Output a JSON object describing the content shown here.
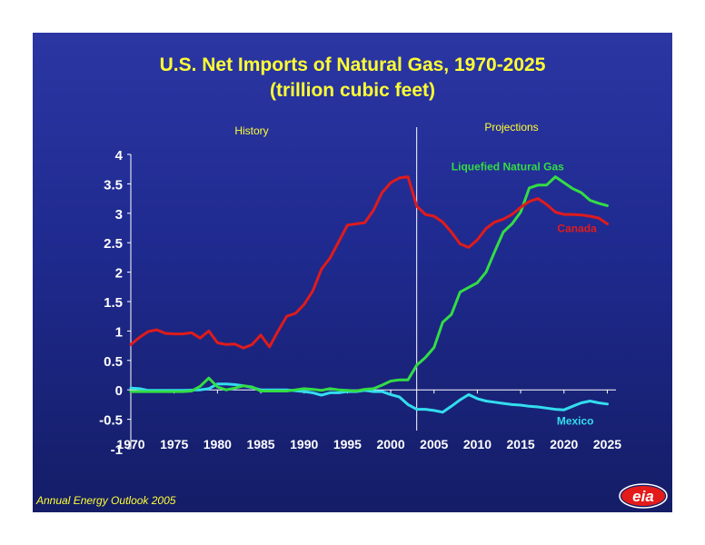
{
  "slide": {
    "footer": "Annual Energy Outlook 2005",
    "logo_text": "eia"
  },
  "colors": {
    "background_top": "#2b36a3",
    "background_bottom": "#141d66",
    "title": "#ffff33",
    "canada": "#e01b1b",
    "lng": "#33dd44",
    "mexico": "#33ddee",
    "axis": "#ffffff",
    "history_divider": "#ffffff"
  },
  "chart_data": {
    "type": "line",
    "title": "U.S. Net Imports of Natural Gas, 1970-2025",
    "subtitle": "(trillion cubic feet)",
    "xlabel": "",
    "ylabel": "",
    "xlim": [
      1970,
      2026
    ],
    "ylim": [
      -1,
      4
    ],
    "x_ticks": [
      1970,
      1975,
      1980,
      1985,
      1990,
      1995,
      2000,
      2005,
      2010,
      2015,
      2020,
      2025
    ],
    "y_ticks": [
      -1,
      -0.5,
      0,
      0.5,
      1,
      1.5,
      2,
      2.5,
      3,
      3.5,
      4
    ],
    "y_tick_labels": [
      "-1",
      "-0.5",
      "0",
      "0.5",
      "1",
      "1.5",
      "2",
      "2.5",
      "3",
      "3.5",
      "4"
    ],
    "grid": false,
    "divider_year": 2003,
    "annotations": {
      "history": "History",
      "projections": "Projections"
    },
    "series": [
      {
        "name": "Canada",
        "x": [
          1970,
          1971,
          1972,
          1973,
          1974,
          1975,
          1976,
          1977,
          1978,
          1979,
          1980,
          1981,
          1982,
          1983,
          1984,
          1985,
          1986,
          1987,
          1988,
          1989,
          1990,
          1991,
          1992,
          1993,
          1994,
          1995,
          1996,
          1997,
          1998,
          1999,
          2000,
          2001,
          2002,
          2003,
          2004,
          2005,
          2006,
          2007,
          2008,
          2009,
          2010,
          2011,
          2012,
          2013,
          2014,
          2015,
          2016,
          2017,
          2018,
          2019,
          2020,
          2021,
          2022,
          2023,
          2024,
          2025
        ],
        "y": [
          0.77,
          0.89,
          0.99,
          1.02,
          0.96,
          0.95,
          0.95,
          0.97,
          0.88,
          1.0,
          0.8,
          0.77,
          0.78,
          0.71,
          0.77,
          0.93,
          0.73,
          1.0,
          1.25,
          1.3,
          1.45,
          1.68,
          2.05,
          2.24,
          2.52,
          2.8,
          2.82,
          2.84,
          3.05,
          3.35,
          3.52,
          3.6,
          3.62,
          3.12,
          2.98,
          2.95,
          2.85,
          2.68,
          2.48,
          2.42,
          2.55,
          2.74,
          2.85,
          2.9,
          2.98,
          3.1,
          3.2,
          3.25,
          3.15,
          3.02,
          2.98,
          2.98,
          2.97,
          2.95,
          2.92,
          2.82
        ]
      },
      {
        "name": "Liquefied Natural Gas",
        "x": [
          1970,
          1972,
          1974,
          1976,
          1977,
          1978,
          1979,
          1980,
          1981,
          1982,
          1983,
          1984,
          1985,
          1986,
          1987,
          1988,
          1989,
          1990,
          1991,
          1992,
          1993,
          1994,
          1995,
          1996,
          1997,
          1998,
          1999,
          2000,
          2001,
          2002,
          2003,
          2004,
          2005,
          2006,
          2007,
          2008,
          2009,
          2010,
          2011,
          2012,
          2013,
          2014,
          2015,
          2016,
          2017,
          2018,
          2019,
          2020,
          2021,
          2022,
          2023,
          2024,
          2025
        ],
        "y": [
          -0.03,
          -0.03,
          -0.03,
          -0.03,
          -0.02,
          0.06,
          0.2,
          0.05,
          0.0,
          0.03,
          0.07,
          0.05,
          -0.02,
          -0.02,
          -0.02,
          -0.02,
          0.0,
          0.02,
          0.01,
          -0.01,
          0.02,
          0.0,
          -0.01,
          -0.02,
          0.01,
          0.02,
          0.08,
          0.15,
          0.17,
          0.17,
          0.42,
          0.55,
          0.72,
          1.15,
          1.28,
          1.66,
          1.74,
          1.82,
          2.0,
          2.35,
          2.68,
          2.82,
          3.02,
          3.43,
          3.48,
          3.48,
          3.62,
          3.52,
          3.42,
          3.35,
          3.22,
          3.17,
          3.13
        ]
      },
      {
        "name": "Mexico",
        "x": [
          1970,
          1971,
          1972,
          1974,
          1976,
          1978,
          1979,
          1980,
          1981,
          1982,
          1983,
          1984,
          1985,
          1986,
          1988,
          1990,
          1991,
          1992,
          1993,
          1994,
          1995,
          1996,
          1997,
          1998,
          1999,
          2000,
          2001,
          2002,
          2003,
          2004,
          2005,
          2006,
          2007,
          2008,
          2009,
          2010,
          2011,
          2012,
          2013,
          2014,
          2015,
          2016,
          2017,
          2018,
          2019,
          2020,
          2021,
          2022,
          2023,
          2024,
          2025
        ],
        "y": [
          0.03,
          0.02,
          -0.01,
          -0.01,
          -0.01,
          0.0,
          0.02,
          0.1,
          0.1,
          0.09,
          0.07,
          0.04,
          0.0,
          0.0,
          0.0,
          -0.03,
          -0.05,
          -0.09,
          -0.05,
          -0.05,
          -0.03,
          -0.03,
          -0.01,
          -0.03,
          -0.03,
          -0.08,
          -0.12,
          -0.25,
          -0.33,
          -0.33,
          -0.35,
          -0.38,
          -0.28,
          -0.17,
          -0.08,
          -0.15,
          -0.19,
          -0.21,
          -0.23,
          -0.25,
          -0.26,
          -0.28,
          -0.29,
          -0.31,
          -0.33,
          -0.34,
          -0.28,
          -0.22,
          -0.19,
          -0.22,
          -0.24
        ]
      }
    ],
    "series_labels": [
      {
        "series": "Liquefied Natural Gas",
        "text": "Liquefied Natural Gas",
        "anchor_x": 2013.5,
        "anchor_y": 3.73
      },
      {
        "series": "Canada",
        "text": "Canada",
        "anchor_x": 2021.5,
        "anchor_y": 2.68
      },
      {
        "series": "Mexico",
        "text": "Mexico",
        "anchor_x": 2021.3,
        "anchor_y": -0.59
      }
    ]
  }
}
